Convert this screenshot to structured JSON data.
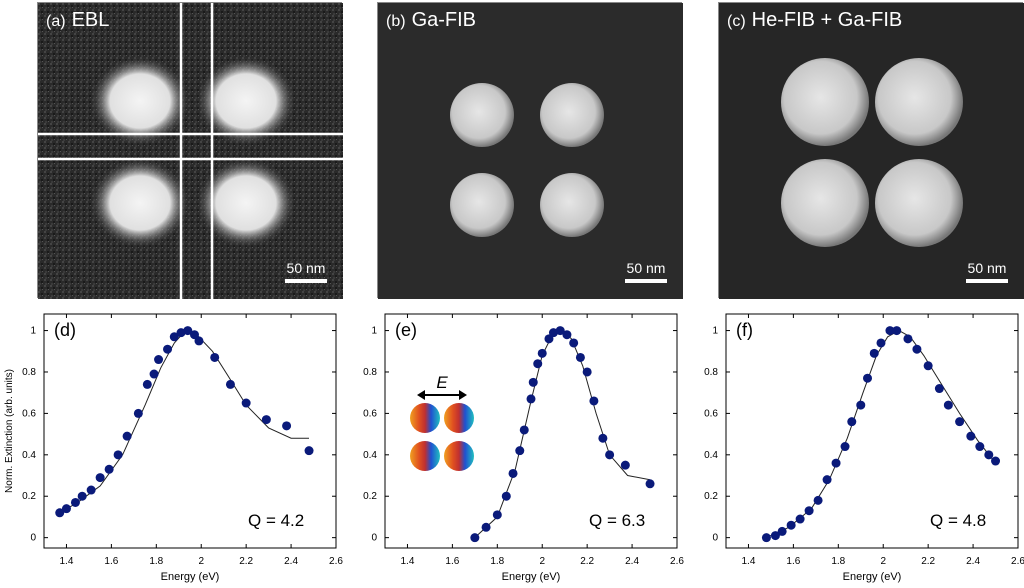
{
  "figure": {
    "sem_panels": [
      {
        "tag": "(a)",
        "title": "EBL",
        "scale_label": "50 nm"
      },
      {
        "tag": "(b)",
        "title": "Ga-FIB",
        "scale_label": "50 nm"
      },
      {
        "tag": "(c)",
        "title": "He-FIB + Ga-FIB",
        "scale_label": "50 nm"
      }
    ],
    "field_label": "E"
  },
  "chart_data": [
    {
      "type": "scatter",
      "panel_tag": "(d)",
      "annotation": "Q = 4.2",
      "xlabel": "Energy (eV)",
      "ylabel": "Norm. Extinction (arb. units)",
      "xlim": [
        1.3,
        2.6
      ],
      "ylim": [
        -0.05,
        1.08
      ],
      "xticks": [
        "1.4",
        "1.6",
        "1.8",
        "2",
        "2.2",
        "2.4",
        "2.6"
      ],
      "yticks": [
        "0",
        "0.2",
        "0.4",
        "0.6",
        "0.8",
        "1"
      ],
      "points": {
        "x": [
          1.37,
          1.4,
          1.44,
          1.47,
          1.51,
          1.55,
          1.59,
          1.63,
          1.67,
          1.72,
          1.76,
          1.79,
          1.81,
          1.85,
          1.88,
          1.91,
          1.94,
          1.97,
          1.99,
          2.06,
          2.13,
          2.2,
          2.29,
          2.38,
          2.48
        ],
        "y": [
          0.12,
          0.14,
          0.17,
          0.2,
          0.23,
          0.29,
          0.33,
          0.4,
          0.49,
          0.6,
          0.74,
          0.79,
          0.86,
          0.91,
          0.97,
          0.99,
          1.0,
          0.98,
          0.95,
          0.87,
          0.74,
          0.65,
          0.57,
          0.54,
          0.42
        ]
      },
      "fit": {
        "x": [
          1.37,
          1.45,
          1.55,
          1.65,
          1.75,
          1.82,
          1.88,
          1.93,
          1.98,
          2.05,
          2.12,
          2.2,
          2.3,
          2.4,
          2.48
        ],
        "y": [
          0.12,
          0.17,
          0.25,
          0.4,
          0.64,
          0.82,
          0.94,
          1.0,
          0.98,
          0.9,
          0.78,
          0.64,
          0.53,
          0.48,
          0.48
        ]
      }
    },
    {
      "type": "scatter",
      "panel_tag": "(e)",
      "annotation": "Q = 6.3",
      "xlabel": "Energy (eV)",
      "xlim": [
        1.3,
        2.6
      ],
      "ylim": [
        -0.05,
        1.08
      ],
      "xticks": [
        "1.4",
        "1.6",
        "1.8",
        "2",
        "2.2",
        "2.4",
        "2.6"
      ],
      "yticks": [
        "0",
        "0.2",
        "0.4",
        "0.6",
        "0.8",
        "1"
      ],
      "points": {
        "x": [
          1.7,
          1.75,
          1.8,
          1.84,
          1.87,
          1.9,
          1.92,
          1.95,
          1.96,
          1.98,
          2.0,
          2.03,
          2.05,
          2.08,
          2.11,
          2.14,
          2.17,
          2.2,
          2.23,
          2.27,
          2.3,
          2.37,
          2.48
        ],
        "y": [
          0.0,
          0.05,
          0.11,
          0.2,
          0.31,
          0.42,
          0.52,
          0.67,
          0.75,
          0.84,
          0.89,
          0.96,
          0.99,
          1.0,
          0.98,
          0.94,
          0.87,
          0.8,
          0.66,
          0.48,
          0.4,
          0.35,
          0.26
        ]
      },
      "fit": {
        "x": [
          1.7,
          1.8,
          1.88,
          1.95,
          2.0,
          2.05,
          2.09,
          2.13,
          2.18,
          2.24,
          2.3,
          2.38,
          2.48
        ],
        "y": [
          0.0,
          0.1,
          0.33,
          0.66,
          0.88,
          0.99,
          1.0,
          0.96,
          0.83,
          0.6,
          0.4,
          0.3,
          0.28
        ]
      }
    },
    {
      "type": "scatter",
      "panel_tag": "(f)",
      "annotation": "Q = 4.8",
      "xlabel": "Energy (eV)",
      "xlim": [
        1.3,
        2.6
      ],
      "ylim": [
        -0.05,
        1.08
      ],
      "xticks": [
        "1.4",
        "1.6",
        "1.8",
        "2",
        "2.2",
        "2.4",
        "2.6"
      ],
      "yticks": [
        "0",
        "0.2",
        "0.4",
        "0.6",
        "0.8",
        "1"
      ],
      "points": {
        "x": [
          1.48,
          1.52,
          1.55,
          1.59,
          1.63,
          1.67,
          1.71,
          1.75,
          1.79,
          1.83,
          1.86,
          1.9,
          1.93,
          1.96,
          1.99,
          2.03,
          2.06,
          2.11,
          2.15,
          2.2,
          2.25,
          2.29,
          2.34,
          2.39,
          2.43,
          2.47,
          2.5
        ],
        "y": [
          0.0,
          0.01,
          0.03,
          0.06,
          0.09,
          0.13,
          0.18,
          0.28,
          0.36,
          0.44,
          0.56,
          0.64,
          0.77,
          0.89,
          0.94,
          1.0,
          1.0,
          0.96,
          0.91,
          0.83,
          0.72,
          0.64,
          0.56,
          0.49,
          0.44,
          0.4,
          0.37
        ]
      },
      "fit": {
        "x": [
          1.48,
          1.58,
          1.68,
          1.76,
          1.84,
          1.91,
          1.97,
          2.02,
          2.07,
          2.12,
          2.18,
          2.26,
          2.34,
          2.42,
          2.5
        ],
        "y": [
          0.0,
          0.05,
          0.14,
          0.28,
          0.48,
          0.7,
          0.88,
          0.97,
          1.0,
          0.97,
          0.88,
          0.74,
          0.6,
          0.47,
          0.36
        ]
      }
    }
  ]
}
